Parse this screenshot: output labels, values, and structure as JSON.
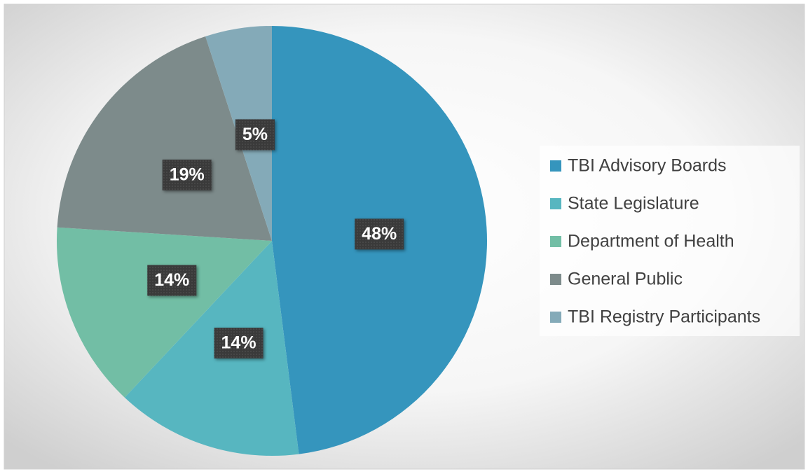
{
  "chart_data": {
    "type": "pie",
    "categories": [
      "TBI Advisory Boards",
      "State Legislature",
      "Department of Health",
      "General Public",
      "TBI Registry Participants"
    ],
    "values": [
      48,
      14,
      14,
      19,
      5
    ],
    "value_labels": [
      "48%",
      "14%",
      "14%",
      "19%",
      "5%"
    ],
    "colors": [
      "#3595bd",
      "#57b6c0",
      "#72bea5",
      "#7d8b8b",
      "#84aab8"
    ],
    "legend": "right"
  }
}
